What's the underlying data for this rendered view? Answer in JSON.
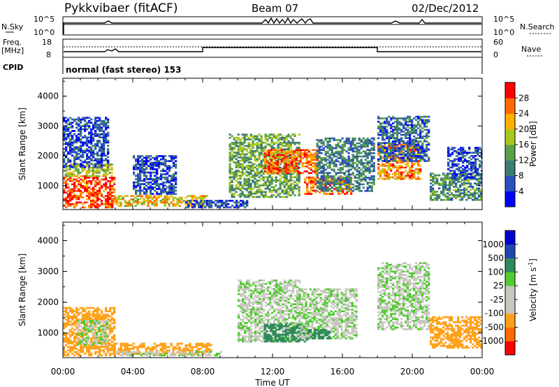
{
  "header": {
    "station": "Pykkvibaer (fitACF)",
    "beam": "Beam 07",
    "date": "02/Dec/2012"
  },
  "noise_panel": {
    "left_label": "N.Sky",
    "left_ticks": [
      "10^5",
      "10^0"
    ],
    "right_label": "N.Search",
    "right_ticks": [
      "10^5",
      "10^0"
    ]
  },
  "freq_panel": {
    "left_label_top": "Freq.",
    "left_label_bottom": "[MHz]",
    "left_ticks": [
      "18",
      "8"
    ],
    "right_label": "Nave",
    "right_ticks": [
      "60",
      "0"
    ]
  },
  "cpid": {
    "label": "CPID",
    "text": "normal (fast stereo) 153"
  },
  "x_axis": {
    "label": "Time UT",
    "ticks": [
      "00:00",
      "04:00",
      "08:00",
      "12:00",
      "16:00",
      "20:00",
      "00:00"
    ]
  },
  "colors": {
    "power": [
      "#0000ff",
      "#2b4fbf",
      "#3d7c74",
      "#5aa04a",
      "#a9c81f",
      "#ffb000",
      "#ff6a00",
      "#ff0000"
    ],
    "velocity": [
      "#ff0000",
      "#ff6a00",
      "#ffa11a",
      "#c8c8c0",
      "#c8c8c0",
      "#4fcc2e",
      "#2e8a5a",
      "#2146b2",
      "#0000cc"
    ]
  },
  "chart_data": [
    {
      "type": "heatmap",
      "name": "power",
      "ylabel": "Slant Range [km]",
      "ylim": [
        200,
        4600
      ],
      "yticks": [
        "1000",
        "2000",
        "3000",
        "4000"
      ],
      "xlim": [
        0,
        24
      ],
      "colorbar": {
        "label": "Power [dB]",
        "range": [
          0,
          32
        ],
        "ticks": [
          "4",
          "8",
          "12",
          "16",
          "20",
          "24",
          "28"
        ]
      },
      "regions": [
        {
          "t0": 0.0,
          "t1": 3.0,
          "r0": 250,
          "r1": 1350,
          "level": 28
        },
        {
          "t0": 0.1,
          "t1": 2.8,
          "r0": 1300,
          "r1": 1700,
          "level": 18
        },
        {
          "t0": 0.0,
          "t1": 2.6,
          "r0": 1600,
          "r1": 3300,
          "level": 6
        },
        {
          "t0": 2.9,
          "t1": 8.5,
          "r0": 300,
          "r1": 650,
          "level": 20
        },
        {
          "t0": 4.0,
          "t1": 6.5,
          "r0": 700,
          "r1": 2000,
          "level": 6
        },
        {
          "t0": 7.0,
          "t1": 10.5,
          "r0": 250,
          "r1": 500,
          "level": 6
        },
        {
          "t0": 9.5,
          "t1": 13.5,
          "r0": 600,
          "r1": 2700,
          "level": 14
        },
        {
          "t0": 11.5,
          "t1": 14.5,
          "r0": 1400,
          "r1": 2200,
          "level": 26
        },
        {
          "t0": 13.8,
          "t1": 16.5,
          "r0": 700,
          "r1": 1300,
          "level": 26
        },
        {
          "t0": 14.5,
          "t1": 17.8,
          "r0": 800,
          "r1": 2600,
          "level": 10
        },
        {
          "t0": 18.0,
          "t1": 20.5,
          "r0": 1200,
          "r1": 2400,
          "level": 24
        },
        {
          "t0": 18.0,
          "t1": 21.0,
          "r0": 1800,
          "r1": 3300,
          "level": 8
        },
        {
          "t0": 21.0,
          "t1": 24.0,
          "r0": 500,
          "r1": 1400,
          "level": 12
        },
        {
          "t0": 22.0,
          "t1": 24.0,
          "r0": 1200,
          "r1": 2300,
          "level": 6
        }
      ]
    },
    {
      "type": "heatmap",
      "name": "velocity",
      "ylabel": "Slant Range [km]",
      "ylim": [
        200,
        4600
      ],
      "yticks": [
        "1000",
        "2000",
        "3000",
        "4000"
      ],
      "xlim": [
        0,
        24
      ],
      "colorbar": {
        "label": "Velocity [m s",
        "label_sup": "-1",
        "label_end": "]",
        "ticks": [
          "1000",
          "500",
          "100",
          "25",
          "-25",
          "-100",
          "-500",
          "-1000"
        ]
      },
      "regions": [
        {
          "t0": 0.0,
          "t1": 3.0,
          "r0": 250,
          "r1": 1800,
          "level": -300
        },
        {
          "t0": 0.8,
          "t1": 2.6,
          "r0": 600,
          "r1": 1400,
          "level": 0
        },
        {
          "t0": 2.9,
          "t1": 8.5,
          "r0": 300,
          "r1": 650,
          "level": -200
        },
        {
          "t0": 3.0,
          "t1": 9.0,
          "r0": 250,
          "r1": 400,
          "level": 0
        },
        {
          "t0": 10.0,
          "t1": 13.5,
          "r0": 700,
          "r1": 2700,
          "level": 0
        },
        {
          "t0": 11.5,
          "t1": 14.0,
          "r0": 700,
          "r1": 1300,
          "level": 200
        },
        {
          "t0": 13.5,
          "t1": 16.8,
          "r0": 800,
          "r1": 2400,
          "level": 0
        },
        {
          "t0": 14.0,
          "t1": 15.3,
          "r0": 800,
          "r1": 1100,
          "level": 300
        },
        {
          "t0": 18.0,
          "t1": 21.0,
          "r0": 1100,
          "r1": 3300,
          "level": 0
        },
        {
          "t0": 21.0,
          "t1": 24.0,
          "r0": 500,
          "r1": 1500,
          "level": -300
        }
      ]
    }
  ]
}
